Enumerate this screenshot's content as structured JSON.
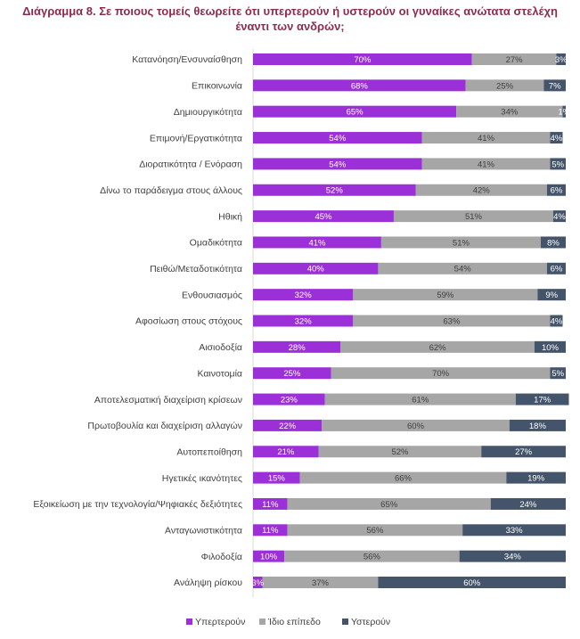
{
  "chart_data": {
    "type": "bar",
    "orientation": "horizontal",
    "stacked": true,
    "percent_stacked": true,
    "title": "Διάγραμμα 8. Σε ποιους τομείς θεωρείτε ότι υπερτερούν ή υστερούν οι γυναίκες ανώτατα στελέχη έναντι των ανδρών;",
    "categories": [
      "Κατανόηση/Ενσυναίσθηση",
      "Επικοινωνία",
      "Δημιουργικότητα",
      "Επιμονή/Εργατικότητα",
      "Διορατικότητα / Ενόραση",
      "Δίνω το παράδειγμα στους άλλους",
      "Ηθική",
      "Ομαδικότητα",
      "Πειθώ/Μεταδοτικότητα",
      "Ενθουσιασμός",
      "Αφοσίωση στους στόχους",
      "Αισιοδοξία",
      "Καινοτομία",
      "Αποτελεσματική διαχείριση κρίσεων",
      "Πρωτοβουλία και διαχείριση αλλαγών",
      "Αυτοπεποίθηση",
      "Ηγετικές ικανότητες",
      "Εξοικείωση με την τεχνολογία/Ψηφιακές δεξιότητες",
      "Ανταγωνιστικότητα",
      "Φιλοδοξία",
      "Ανάληψη ρίσκου"
    ],
    "series": [
      {
        "name": "Υπερτερούν",
        "color": "#9B30D9",
        "label_color": "#ffffff",
        "values": [
          70,
          68,
          65,
          54,
          54,
          52,
          45,
          41,
          40,
          32,
          32,
          28,
          25,
          23,
          22,
          21,
          15,
          11,
          11,
          10,
          3
        ]
      },
      {
        "name": "Ίδιο επίπεδο",
        "color": "#A6A6A6",
        "label_color": "#404040",
        "values": [
          27,
          25,
          34,
          41,
          41,
          42,
          51,
          51,
          54,
          59,
          63,
          62,
          70,
          61,
          60,
          52,
          66,
          65,
          56,
          56,
          37
        ]
      },
      {
        "name": "Υστερούν",
        "color": "#44546A",
        "label_color": "#ffffff",
        "values": [
          3,
          7,
          1,
          4,
          5,
          6,
          4,
          8,
          6,
          9,
          4,
          10,
          5,
          17,
          18,
          27,
          19,
          24,
          33,
          34,
          60
        ]
      }
    ],
    "value_suffix": "%",
    "legend_position": "bottom",
    "xlim": [
      0,
      100
    ],
    "grid": false
  }
}
